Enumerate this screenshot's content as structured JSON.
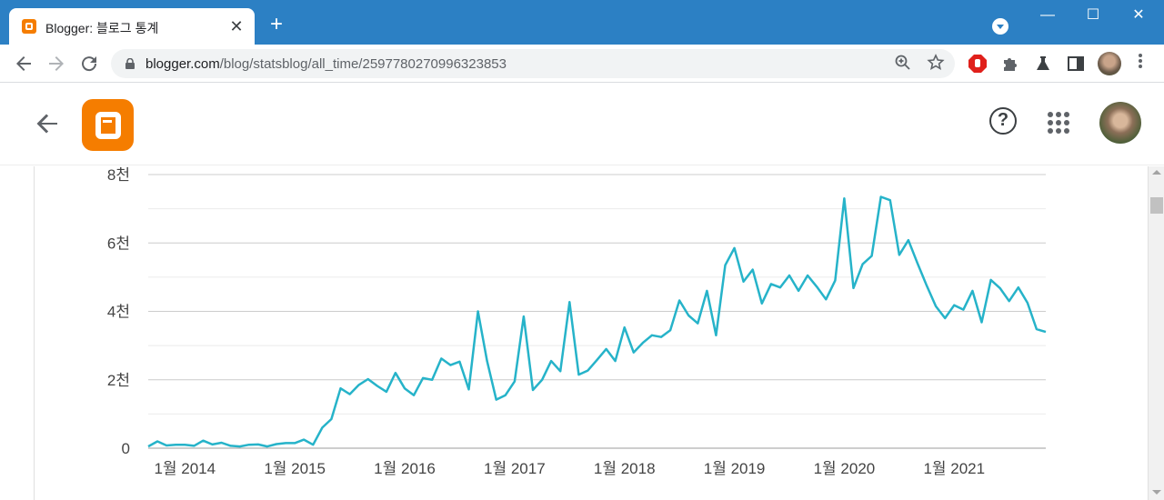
{
  "browser": {
    "tab_title": "Blogger: 블로그 통계",
    "tab_close": "✕",
    "new_tab": "+",
    "window_buttons": [
      "—",
      "☐",
      "✕"
    ],
    "url_host": "blogger.com",
    "url_path": "/blog/statsblog/all_time/2597780270996323853",
    "icons": [
      "back-icon",
      "forward-icon",
      "reload-icon",
      "lock-icon",
      "zoom-icon",
      "star-icon",
      "extension-adblock-icon",
      "puzzle-icon",
      "flask-icon",
      "sidepanel-icon",
      "profile-avatar",
      "menu-icon"
    ]
  },
  "app": {
    "help_label": "?",
    "icons": [
      "back-arrow-icon",
      "blogger-logo",
      "help-icon",
      "apps-grid-icon",
      "account-avatar"
    ]
  },
  "chart_data": {
    "type": "line",
    "color": "#26b3c9",
    "ylim": [
      0,
      8000
    ],
    "y_ticks": [
      {
        "value": 0,
        "label": "0"
      },
      {
        "value": 2000,
        "label": "2천"
      },
      {
        "value": 4000,
        "label": "4천"
      },
      {
        "value": 6000,
        "label": "6천"
      },
      {
        "value": 8000,
        "label": "8천"
      }
    ],
    "x_ticks": [
      {
        "index": 4,
        "label": "1월 2014"
      },
      {
        "index": 16,
        "label": "1월 2015"
      },
      {
        "index": 28,
        "label": "1월 2016"
      },
      {
        "index": 40,
        "label": "1월 2017"
      },
      {
        "index": 52,
        "label": "1월 2018"
      },
      {
        "index": 64,
        "label": "1월 2019"
      },
      {
        "index": 76,
        "label": "1월 2020"
      },
      {
        "index": 88,
        "label": "1월 2021"
      }
    ],
    "series": [
      {
        "values": [
          50,
          200,
          80,
          100,
          100,
          70,
          220,
          110,
          160,
          70,
          50,
          100,
          110,
          50,
          120,
          150,
          150,
          250,
          100,
          600,
          850,
          1750,
          1580,
          1850,
          2020,
          1820,
          1650,
          2200,
          1750,
          1550,
          2050,
          2000,
          2620,
          2430,
          2530,
          1720,
          4000,
          2550,
          1420,
          1550,
          1950,
          3850,
          1700,
          2000,
          2550,
          2250,
          4270,
          2150,
          2270,
          2580,
          2900,
          2550,
          3530,
          2800,
          3080,
          3300,
          3250,
          3450,
          4320,
          3880,
          3650,
          4600,
          3300,
          5350,
          5850,
          4870,
          5220,
          4230,
          4800,
          4700,
          5050,
          4600,
          5050,
          4720,
          4350,
          4900,
          7300,
          4680,
          5380,
          5620,
          7350,
          7250,
          5650,
          6080,
          5400,
          4750,
          4150,
          3800,
          4180,
          4050,
          4600,
          3680,
          4920,
          4680,
          4300,
          4700,
          4250,
          3480,
          3400
        ]
      }
    ]
  }
}
